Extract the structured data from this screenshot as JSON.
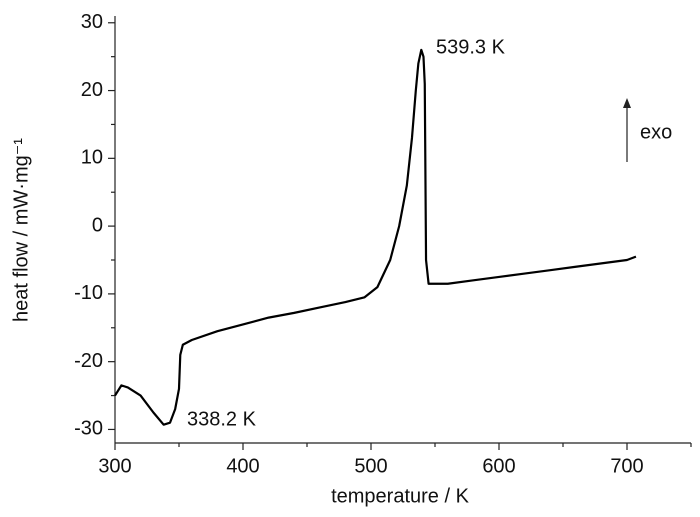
{
  "chart_data": {
    "type": "line",
    "xlabel": "temperature / K",
    "ylabel": "heat flow / mW·mg⁻¹",
    "xlim": [
      300,
      750
    ],
    "ylim": [
      -32,
      31
    ],
    "xticks": [
      300,
      400,
      500,
      600,
      700
    ],
    "xminorticks": [
      350,
      450,
      550,
      650,
      750
    ],
    "yticks": [
      -30,
      -20,
      -10,
      0,
      10,
      20,
      30
    ],
    "yminorticks": [
      -25,
      -15,
      -5,
      5,
      15,
      25
    ],
    "color": "#000000",
    "annotations": [
      "539.3 K",
      "338.2 K",
      "exo"
    ],
    "x": [
      300,
      305,
      310,
      320,
      330,
      338,
      343,
      347,
      350,
      351,
      353,
      360,
      380,
      400,
      420,
      440,
      460,
      480,
      495,
      505,
      515,
      522,
      528,
      532,
      535,
      537,
      539.3,
      541,
      542,
      543,
      545,
      560,
      580,
      600,
      620,
      640,
      660,
      680,
      700,
      707
    ],
    "values": [
      -25,
      -23.5,
      -23.8,
      -25,
      -27.5,
      -29.3,
      -29,
      -27,
      -24,
      -19,
      -17.5,
      -16.8,
      -15.5,
      -14.5,
      -13.5,
      -12.8,
      -12,
      -11.2,
      -10.5,
      -9,
      -5,
      0,
      6,
      13,
      20,
      24,
      26,
      25,
      21,
      -5,
      -8.5,
      -8.5,
      -8,
      -7.5,
      -7,
      -6.5,
      -6,
      -5.5,
      -5,
      -4.5
    ]
  }
}
